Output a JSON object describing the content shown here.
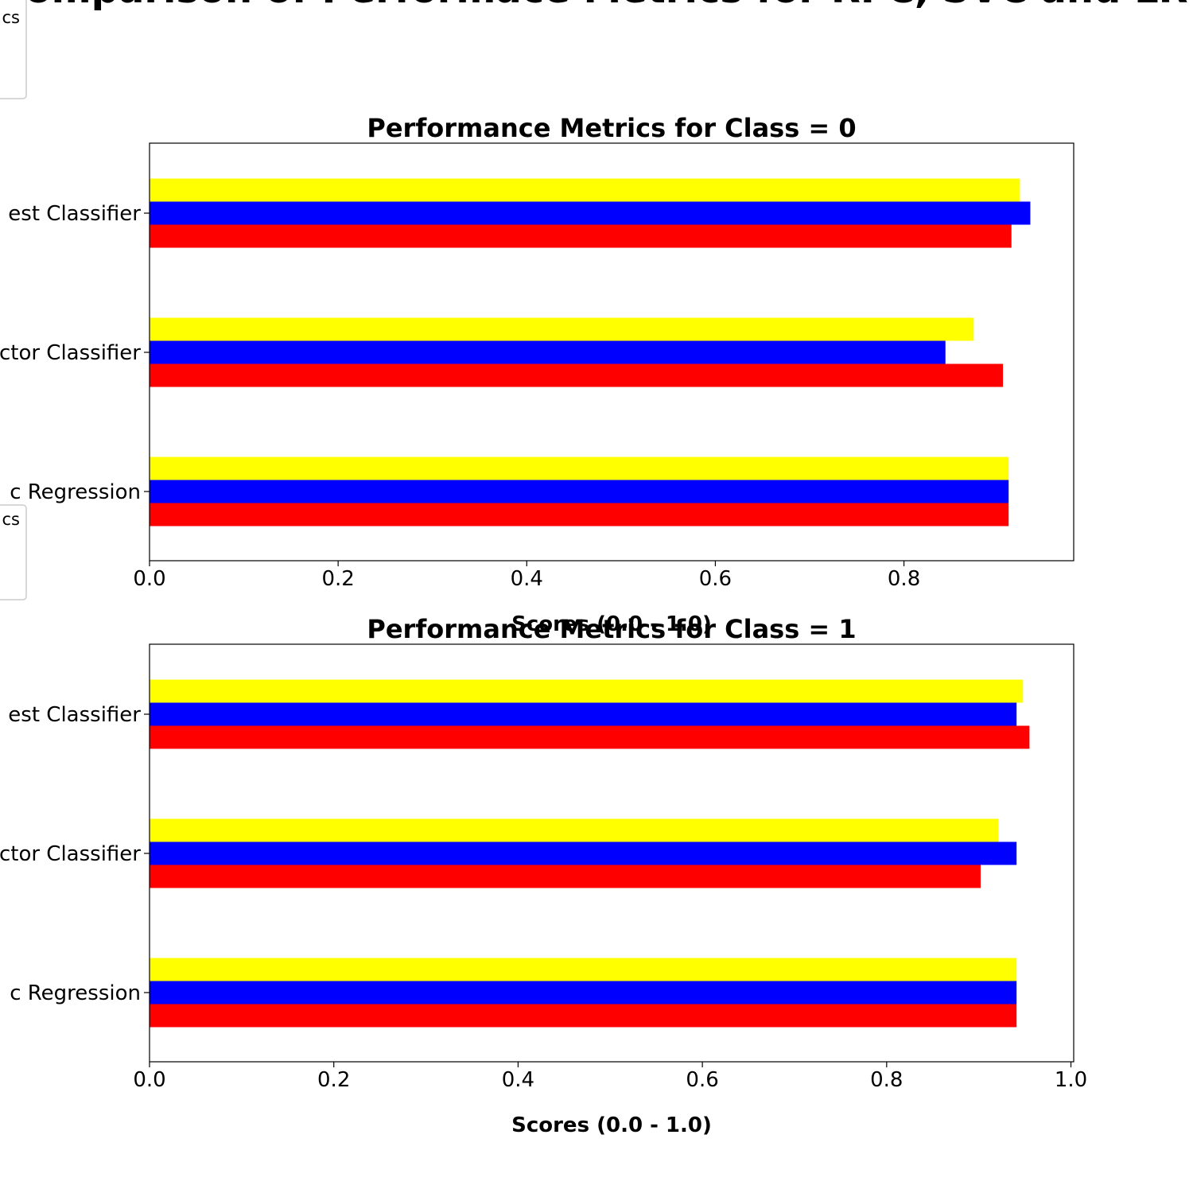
{
  "figure_title": "Comparison of Performace Metrics for RFC, SVC and LR",
  "legend_fragments": [
    "cs",
    "cs"
  ],
  "colors": {
    "precision": "#ffff00",
    "recall": "#0000ff",
    "f1": "#ff0000"
  },
  "chart_data": [
    {
      "type": "bar",
      "orientation": "horizontal",
      "title": "Performance Metrics for Class = 0",
      "xlabel": "Scores (0.0 - 1.0)",
      "ylabel": "",
      "categories": [
        "Logistic Regression",
        "Support Vector Classifier",
        "Random Forest Classifier"
      ],
      "visible_category_labels": [
        "c Regression",
        "ctor Classifier",
        "est Classifier"
      ],
      "xlim": [
        0,
        0.98
      ],
      "xticks": [
        0.0,
        0.2,
        0.4,
        0.6,
        0.8
      ],
      "xtick_labels": [
        "0.0",
        "0.2",
        "0.4",
        "0.6",
        "0.8"
      ],
      "series": [
        {
          "color": "#ffff00",
          "values": [
            0.911,
            0.874,
            0.923
          ]
        },
        {
          "color": "#0000ff",
          "values": [
            0.911,
            0.844,
            0.934
          ]
        },
        {
          "color": "#ff0000",
          "values": [
            0.911,
            0.905,
            0.914
          ]
        }
      ]
    },
    {
      "type": "bar",
      "orientation": "horizontal",
      "title": "Performance Metrics for Class = 1",
      "xlabel": "Scores (0.0 - 1.0)",
      "ylabel": "",
      "categories": [
        "Logistic Regression",
        "Support Vector Classifier",
        "Random Forest Classifier"
      ],
      "visible_category_labels": [
        "c Regression",
        "ctor Classifier",
        "est Classifier"
      ],
      "xlim": [
        0,
        1.003
      ],
      "xticks": [
        0.0,
        0.2,
        0.4,
        0.6,
        0.8,
        1.0
      ],
      "xtick_labels": [
        "0.0",
        "0.2",
        "0.4",
        "0.6",
        "0.8",
        "1.0"
      ],
      "series": [
        {
          "color": "#ffff00",
          "values": [
            0.941,
            0.921,
            0.948
          ]
        },
        {
          "color": "#0000ff",
          "values": [
            0.941,
            0.941,
            0.941
          ]
        },
        {
          "color": "#ff0000",
          "values": [
            0.941,
            0.902,
            0.955
          ]
        }
      ]
    }
  ]
}
